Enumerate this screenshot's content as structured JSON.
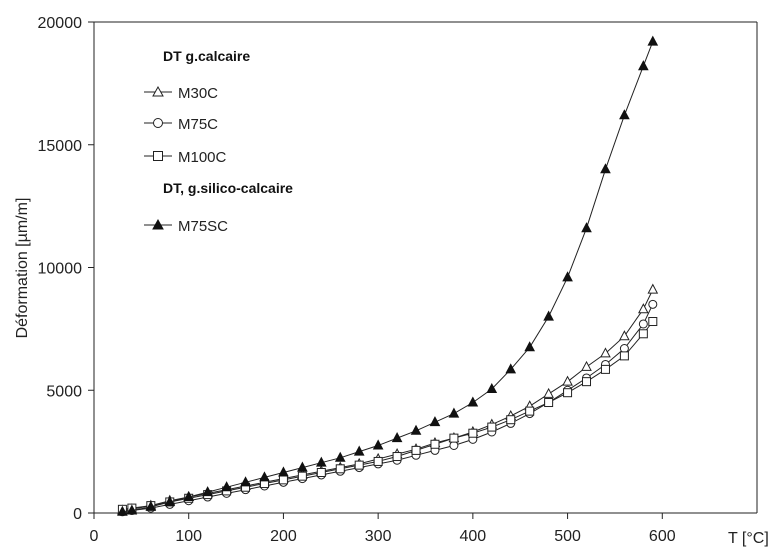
{
  "chart_data": {
    "type": "line",
    "xlabel": "T [°C]",
    "ylabel": "Déformation [µm/m]",
    "xlim": [
      0,
      700
    ],
    "ylim": [
      0,
      20000
    ],
    "x_ticks": [
      0,
      100,
      200,
      300,
      400,
      500,
      600
    ],
    "y_ticks": [
      0,
      5000,
      10000,
      15000,
      20000
    ],
    "grid": false,
    "legend_position": "top-left",
    "legend_groups": [
      {
        "heading": "DT g.calcaire",
        "entries": [
          "M30C",
          "M75C",
          "M100C"
        ]
      },
      {
        "heading": "DT, g.silico-calcaire",
        "entries": [
          "M75SC"
        ]
      }
    ],
    "series": [
      {
        "name": "M30C",
        "marker": "triangle-open",
        "group": 0,
        "x": [
          30,
          40,
          60,
          80,
          100,
          120,
          140,
          160,
          180,
          200,
          220,
          240,
          260,
          280,
          300,
          320,
          340,
          360,
          380,
          400,
          420,
          440,
          460,
          480,
          500,
          520,
          540,
          560,
          580,
          590
        ],
        "y": [
          100,
          150,
          300,
          500,
          650,
          800,
          950,
          1100,
          1250,
          1400,
          1550,
          1700,
          1850,
          2000,
          2200,
          2400,
          2600,
          2850,
          3050,
          3300,
          3600,
          3950,
          4350,
          4850,
          5350,
          5950,
          6500,
          7200,
          8300,
          9100
        ]
      },
      {
        "name": "M75C",
        "marker": "circle-open",
        "group": 0,
        "x": [
          30,
          40,
          60,
          80,
          100,
          120,
          140,
          160,
          180,
          200,
          220,
          240,
          260,
          280,
          300,
          320,
          340,
          360,
          380,
          400,
          420,
          440,
          460,
          480,
          500,
          520,
          540,
          560,
          580,
          590
        ],
        "y": [
          50,
          100,
          200,
          350,
          500,
          650,
          800,
          950,
          1100,
          1250,
          1400,
          1550,
          1700,
          1850,
          2000,
          2150,
          2350,
          2550,
          2750,
          3000,
          3300,
          3650,
          4050,
          4500,
          5000,
          5500,
          6050,
          6700,
          7700,
          8500
        ]
      },
      {
        "name": "M100C",
        "marker": "square-open",
        "group": 0,
        "x": [
          30,
          40,
          60,
          80,
          100,
          120,
          140,
          160,
          180,
          200,
          220,
          240,
          260,
          280,
          300,
          320,
          340,
          360,
          380,
          400,
          420,
          440,
          460,
          480,
          500,
          520,
          540,
          560,
          580,
          590
        ],
        "y": [
          150,
          200,
          300,
          450,
          600,
          750,
          900,
          1050,
          1200,
          1350,
          1500,
          1650,
          1800,
          1950,
          2100,
          2300,
          2550,
          2800,
          3050,
          3250,
          3500,
          3800,
          4150,
          4500,
          4900,
          5350,
          5850,
          6400,
          7300,
          7800
        ]
      },
      {
        "name": "M75SC",
        "marker": "triangle-filled",
        "group": 1,
        "x": [
          30,
          40,
          60,
          80,
          100,
          120,
          140,
          160,
          180,
          200,
          220,
          240,
          260,
          280,
          300,
          320,
          340,
          360,
          380,
          400,
          420,
          440,
          460,
          480,
          500,
          520,
          540,
          560,
          580,
          590
        ],
        "y": [
          50,
          100,
          250,
          450,
          650,
          850,
          1050,
          1250,
          1450,
          1650,
          1850,
          2050,
          2250,
          2500,
          2750,
          3050,
          3350,
          3700,
          4050,
          4500,
          5050,
          5850,
          6750,
          8000,
          9600,
          11600,
          14000,
          16200,
          18200,
          19200
        ]
      }
    ]
  }
}
